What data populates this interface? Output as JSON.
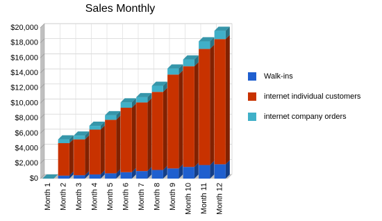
{
  "chart_data": {
    "type": "bar",
    "stacked": true,
    "title": "Sales Monthly",
    "categories": [
      "Month 1",
      "Month 2",
      "Month 3",
      "Month 4",
      "Month 5",
      "Month 6",
      "Month 7",
      "Month 8",
      "Month 9",
      "Month 10",
      "Month 11",
      "Month 12"
    ],
    "series": [
      {
        "name": "Walk-ins",
        "color": "#1f5fcf",
        "values": [
          0,
          400,
          450,
          550,
          700,
          850,
          1000,
          1150,
          1350,
          1550,
          1800,
          1900
        ]
      },
      {
        "name": "internet individual customers",
        "color": "#c83200",
        "values": [
          0,
          4300,
          4750,
          5950,
          7100,
          8550,
          9100,
          10350,
          12450,
          13350,
          15400,
          16600
        ]
      },
      {
        "name": "internet company orders",
        "color": "#40b0c8",
        "values": [
          0,
          500,
          500,
          500,
          600,
          700,
          700,
          800,
          800,
          900,
          1000,
          1100
        ]
      }
    ],
    "ylim": [
      0,
      20000
    ],
    "yticks": [
      {
        "value": 0,
        "label": "$0"
      },
      {
        "value": 2000,
        "label": "$2,000"
      },
      {
        "value": 4000,
        "label": "$4,000"
      },
      {
        "value": 6000,
        "label": "$6,000"
      },
      {
        "value": 8000,
        "label": "$8,000"
      },
      {
        "value": 10000,
        "label": "$10,000"
      },
      {
        "value": 12000,
        "label": "$12,000"
      },
      {
        "value": 14000,
        "label": "$14,000"
      },
      {
        "value": 16000,
        "label": "$16,000"
      },
      {
        "value": 18000,
        "label": "$18,000"
      },
      {
        "value": 20000,
        "label": "$20,000"
      }
    ],
    "grid": true,
    "legend": "right"
  }
}
